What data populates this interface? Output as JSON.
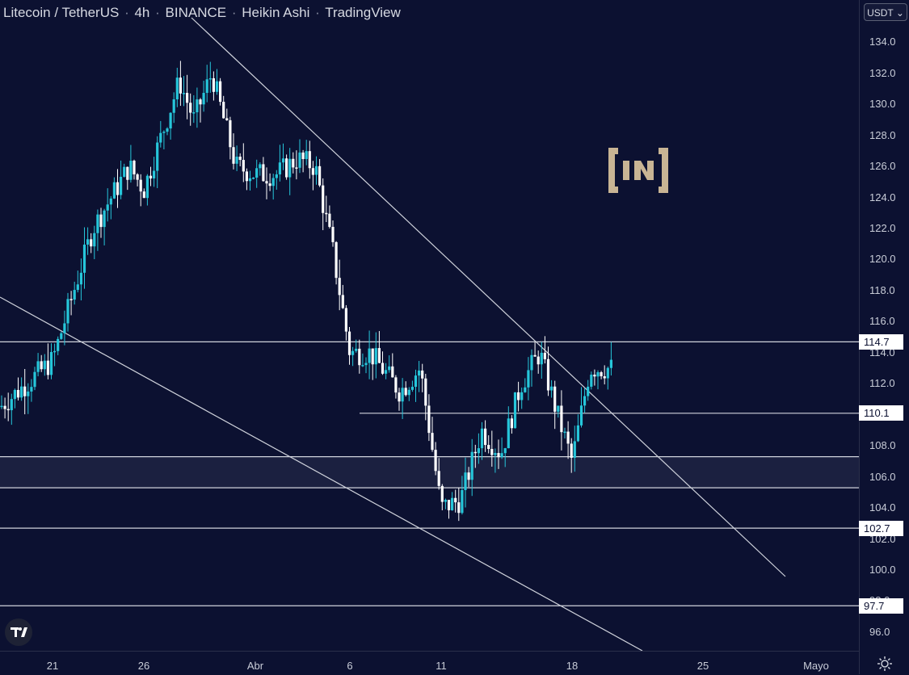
{
  "header": {
    "symbol": "Litecoin / TetherUS",
    "interval": "4h",
    "exchange": "BINANCE",
    "chart_style": "Heikin Ashi",
    "source": "TradingView"
  },
  "currency_button": {
    "label": "USDT"
  },
  "price_labels": [
    {
      "value": "114.7"
    },
    {
      "value": "110.1"
    },
    {
      "value": "102.7"
    },
    {
      "value": "97.7"
    }
  ],
  "icons": {
    "watermark_logo": "beincrypto-logo",
    "tradingview_logo": "tradingview-logo-icon",
    "settings": "gear-icon",
    "dropdown": "chevron-down-icon"
  },
  "colors": {
    "background": "#0c1131",
    "bullish_candle": "#26c6da",
    "bearish_candle": "#ffffff",
    "lines": "#d0d3dc",
    "zone_fill": "#1b2040",
    "logo": "#c8b494"
  },
  "chart_data": {
    "type": "candlestick",
    "title": "Litecoin / TetherUS · 4h · BINANCE · Heikin Ashi · TradingView",
    "ylim": [
      94.8,
      136.2
    ],
    "y_ticks": [
      "96.0",
      "98.0",
      "100.0",
      "102.0",
      "104.0",
      "106.0",
      "108.0",
      "110.0",
      "112.0",
      "114.0",
      "116.0",
      "118.0",
      "120.0",
      "122.0",
      "124.0",
      "126.0",
      "128.0",
      "130.0",
      "132.0",
      "134.0"
    ],
    "x_ticks": [
      "21",
      "26",
      "Abr",
      "6",
      "11",
      "18",
      "25",
      "Mayo"
    ],
    "key": [
      {
        "time": "21",
        "close": 113.5
      },
      {
        "time": "23",
        "close": 122.0
      },
      {
        "time": "25",
        "close": 126.0
      },
      {
        "time": "26",
        "close": 124.5
      },
      {
        "time": "28",
        "close": 131.5
      },
      {
        "time": "29",
        "close": 129.0
      },
      {
        "time": "30",
        "close": 132.0
      },
      {
        "time": "31",
        "close": 126.0
      },
      {
        "time": "Abr",
        "close": 125.5
      },
      {
        "time": "2",
        "close": 125.5
      },
      {
        "time": "3",
        "close": 126.5
      },
      {
        "time": "4",
        "close": 126.0
      },
      {
        "time": "5",
        "close": 120.5
      },
      {
        "time": "6",
        "close": 114.0
      },
      {
        "time": "7",
        "close": 114.0
      },
      {
        "time": "9",
        "close": 111.5
      },
      {
        "time": "10",
        "close": 113.0
      },
      {
        "time": "11",
        "close": 104.0
      },
      {
        "time": "12",
        "close": 104.5
      },
      {
        "time": "13",
        "close": 109.0
      },
      {
        "time": "14",
        "close": 107.5
      },
      {
        "time": "15",
        "close": 112.0
      },
      {
        "time": "16",
        "close": 114.0
      },
      {
        "time": "17",
        "close": 110.0
      },
      {
        "time": "18",
        "close": 107.0
      },
      {
        "time": "19",
        "close": 113.0
      },
      {
        "time": "20",
        "close": 113.0
      }
    ],
    "horizontal_levels": [
      114.7,
      110.1,
      107.3,
      105.3,
      102.7,
      97.7
    ],
    "support_zone": [
      105.3,
      107.3
    ],
    "trendlines": [
      {
        "name": "descending resistance",
        "from": [
          "24",
          137.5
        ],
        "to": [
          "30",
          100.0
        ]
      },
      {
        "name": "channel support",
        "from": [
          "20",
          121.0
        ],
        "to": [
          "22",
          96.6
        ]
      }
    ]
  }
}
